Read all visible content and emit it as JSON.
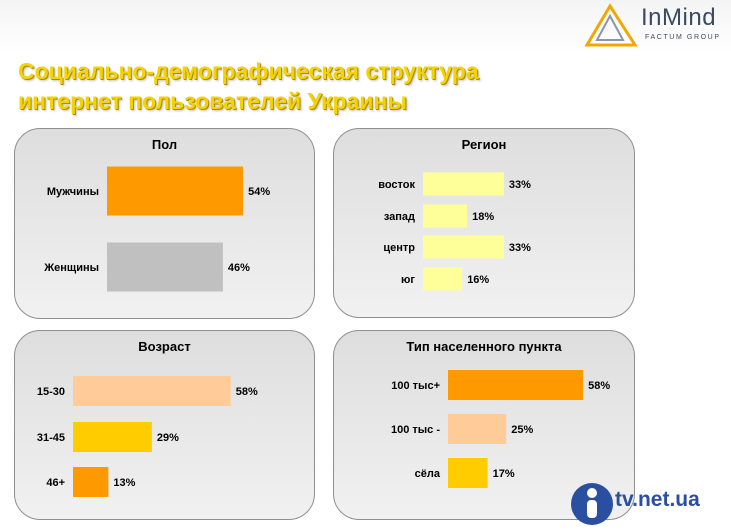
{
  "logo": {
    "name": "InMind",
    "sub": "FACTUM GROUP"
  },
  "title": "Социально-демографическая структура интернет пользователей Украины",
  "watermark": "tv.net.ua",
  "colors": {
    "orange": "#ff9900",
    "grey": "#c0c0c0",
    "pale_yellow": "#ffff99",
    "peach": "#ffcc99",
    "yellow": "#ffcc00"
  },
  "chart_data": [
    {
      "type": "bar",
      "orientation": "horizontal",
      "title": "Пол",
      "categories": [
        "Мужчины",
        "Женщины"
      ],
      "values": [
        54,
        46
      ],
      "labels": [
        "54%",
        "46%"
      ],
      "bar_colors": [
        "#ff9900",
        "#c0c0c0"
      ]
    },
    {
      "type": "bar",
      "orientation": "horizontal",
      "title": "Регион",
      "categories": [
        "восток",
        "запад",
        "центр",
        "юг"
      ],
      "values": [
        33,
        18,
        33,
        16
      ],
      "labels": [
        "33%",
        "18%",
        "33%",
        "16%"
      ],
      "bar_colors": [
        "#ffff99",
        "#ffff99",
        "#ffff99",
        "#ffff99"
      ]
    },
    {
      "type": "bar",
      "orientation": "horizontal",
      "title": "Возраст",
      "categories": [
        "15-30",
        "31-45",
        "46+"
      ],
      "values": [
        58,
        29,
        13
      ],
      "labels": [
        "58%",
        "29%",
        "13%"
      ],
      "bar_colors": [
        "#ffcc99",
        "#ffcc00",
        "#ff9900"
      ]
    },
    {
      "type": "bar",
      "orientation": "horizontal",
      "title": "Тип населенного пункта",
      "categories": [
        "100 тыс+",
        "100 тыс -",
        "сёла"
      ],
      "values": [
        58,
        25,
        17
      ],
      "labels": [
        "58%",
        "25%",
        "17%"
      ],
      "bar_colors": [
        "#ff9900",
        "#ffcc99",
        "#ffcc00"
      ]
    }
  ]
}
